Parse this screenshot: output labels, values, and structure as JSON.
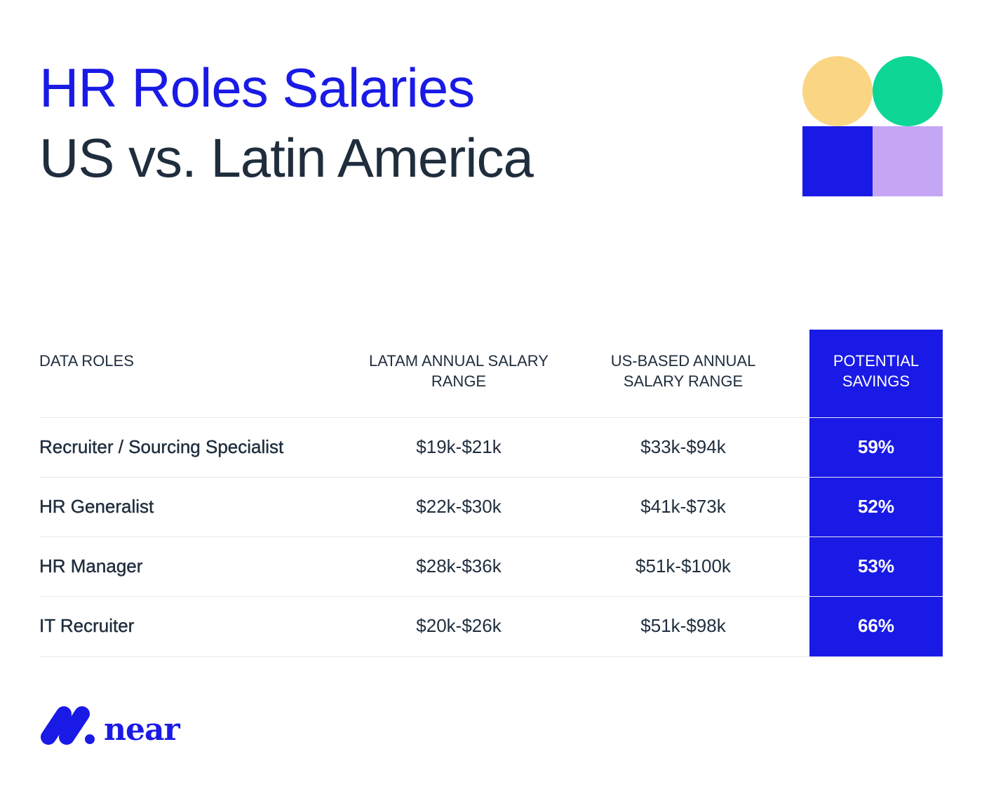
{
  "title": {
    "line1": "HR Roles Salaries",
    "line2": "US vs. Latin America"
  },
  "colors": {
    "brand_blue": "#1a1ae6",
    "yellow": "#fad684",
    "green": "#0dd696",
    "lavender": "#c4a6f5",
    "text": "#1f2d3d"
  },
  "table": {
    "headers": {
      "role": "DATA ROLES",
      "latam_line1": "LATAM ANNUAL SALARY",
      "latam_line2": "RANGE",
      "us_line1": "US-BASED ANNUAL",
      "us_line2": "SALARY RANGE",
      "savings_line1": "POTENTIAL",
      "savings_line2": "SAVINGS"
    },
    "rows": [
      {
        "role": "Recruiter / Sourcing Specialist",
        "latam": "$19k-$21k",
        "us": "$33k-$94k",
        "savings": "59%"
      },
      {
        "role": "HR Generalist",
        "latam": "$22k-$30k",
        "us": "$41k-$73k",
        "savings": "52%"
      },
      {
        "role": "HR Manager",
        "latam": "$28k-$36k",
        "us": "$51k-$100k",
        "savings": "53%"
      },
      {
        "role": "IT Recruiter",
        "latam": "$20k-$26k",
        "us": "$51k-$98k",
        "savings": "66%"
      }
    ]
  },
  "logo": {
    "text": "near"
  }
}
